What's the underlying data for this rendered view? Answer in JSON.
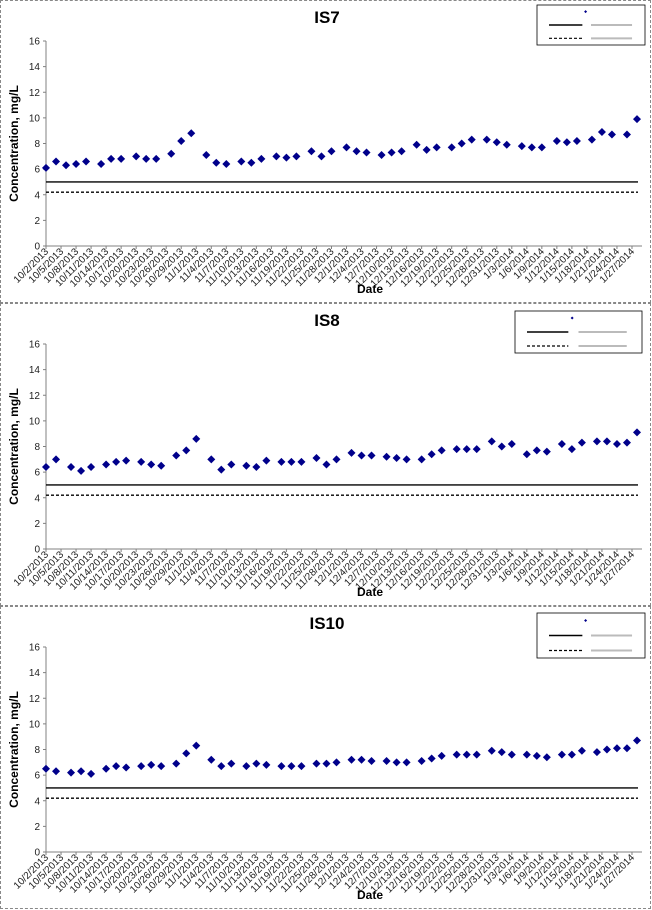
{
  "chart_data": [
    {
      "type": "scatter",
      "title": "IS7",
      "xlabel": "Date",
      "ylabel": "Concentration, mg/L",
      "ylim": [
        0,
        16
      ],
      "yticks": [
        0,
        2,
        4,
        6,
        8,
        10,
        12,
        14,
        16
      ],
      "xticks": [
        "10/2/2013",
        "10/5/2013",
        "10/8/2013",
        "10/11/2013",
        "10/14/2013",
        "10/17/2013",
        "10/20/2013",
        "10/23/2013",
        "10/26/2013",
        "10/29/2013",
        "11/1/2013",
        "11/4/2013",
        "11/7/2013",
        "11/10/2013",
        "11/13/2013",
        "11/16/2013",
        "11/19/2013",
        "11/22/2013",
        "11/25/2013",
        "11/28/2013",
        "12/1/2013",
        "12/4/2013",
        "12/7/2013",
        "12/10/2013",
        "12/13/2013",
        "12/16/2013",
        "12/19/2013",
        "12/22/2013",
        "12/25/2013",
        "12/28/2013",
        "12/31/2013",
        "1/3/2014",
        "1/6/2014",
        "1/9/2014",
        "1/12/2014",
        "1/15/2014",
        "1/18/2014",
        "1/21/2014",
        "1/24/2014",
        "1/27/2014"
      ],
      "xlim": [
        "10/2/2013",
        "1/29/2014"
      ],
      "lines": [
        {
          "name": "",
          "value": 5.0,
          "style": "solid"
        },
        {
          "name": "",
          "value": 4.2,
          "style": "dashed"
        }
      ],
      "legend": "top-right",
      "grid": false,
      "series": [
        {
          "name": "",
          "marker": "diamond",
          "color": "#00008B",
          "x": [
            "10/2/2013",
            "10/4/2013",
            "10/6/2013",
            "10/8/2013",
            "10/10/2013",
            "10/13/2013",
            "10/15/2013",
            "10/17/2013",
            "10/20/2013",
            "10/22/2013",
            "10/24/2013",
            "10/27/2013",
            "10/29/2013",
            "10/31/2013",
            "11/3/2013",
            "11/5/2013",
            "11/7/2013",
            "11/10/2013",
            "11/12/2013",
            "11/14/2013",
            "11/17/2013",
            "11/19/2013",
            "11/21/2013",
            "11/24/2013",
            "11/26/2013",
            "11/28/2013",
            "12/1/2013",
            "12/3/2013",
            "12/5/2013",
            "12/8/2013",
            "12/10/2013",
            "12/12/2013",
            "12/15/2013",
            "12/17/2013",
            "12/19/2013",
            "12/22/2013",
            "12/24/2013",
            "12/26/2013",
            "12/29/2013",
            "12/31/2013",
            "1/2/2014",
            "1/5/2014",
            "1/7/2014",
            "1/9/2014",
            "1/12/2014",
            "1/14/2014",
            "1/16/2014",
            "1/19/2014",
            "1/21/2014",
            "1/23/2014",
            "1/26/2014",
            "1/28/2014"
          ],
          "y": [
            6.1,
            6.6,
            6.3,
            6.4,
            6.6,
            6.4,
            6.8,
            6.8,
            7.0,
            6.8,
            6.8,
            7.2,
            8.2,
            8.8,
            7.1,
            6.5,
            6.4,
            6.6,
            6.5,
            6.8,
            7.0,
            6.9,
            7.0,
            7.4,
            7.0,
            7.4,
            7.7,
            7.4,
            7.3,
            7.1,
            7.3,
            7.4,
            7.9,
            7.5,
            7.7,
            7.7,
            8.0,
            8.3,
            8.3,
            8.1,
            7.9,
            7.8,
            7.7,
            7.7,
            8.2,
            8.1,
            8.2,
            8.3,
            8.9,
            8.7,
            8.7,
            9.9
          ]
        }
      ]
    },
    {
      "type": "scatter",
      "title": "IS8",
      "xlabel": "Date",
      "ylabel": "Concentration, mg/L",
      "ylim": [
        0,
        16
      ],
      "yticks": [
        0,
        2,
        4,
        6,
        8,
        10,
        12,
        14,
        16
      ],
      "xticks": [
        "10/2/2013",
        "10/5/2013",
        "10/8/2013",
        "10/11/2013",
        "10/14/2013",
        "10/17/2013",
        "10/20/2013",
        "10/23/2013",
        "10/26/2013",
        "10/29/2013",
        "11/1/2013",
        "11/4/2013",
        "11/7/2013",
        "11/10/2013",
        "11/13/2013",
        "11/16/2013",
        "11/19/2013",
        "11/22/2013",
        "11/25/2013",
        "11/28/2013",
        "12/1/2013",
        "12/4/2013",
        "12/7/2013",
        "12/10/2013",
        "12/13/2013",
        "12/16/2013",
        "12/19/2013",
        "12/22/2013",
        "12/25/2013",
        "12/28/2013",
        "12/31/2013",
        "1/3/2014",
        "1/6/2014",
        "1/9/2014",
        "1/12/2014",
        "1/15/2014",
        "1/18/2014",
        "1/21/2014",
        "1/24/2014",
        "1/27/2014"
      ],
      "xlim": [
        "10/2/2013",
        "1/29/2014"
      ],
      "lines": [
        {
          "name": "",
          "value": 5.0,
          "style": "solid"
        },
        {
          "name": "",
          "value": 4.2,
          "style": "dashed"
        }
      ],
      "legend": "top-right",
      "grid": false,
      "series": [
        {
          "name": "",
          "marker": "diamond",
          "color": "#00008B",
          "x": [
            "10/2/2013",
            "10/4/2013",
            "10/7/2013",
            "10/9/2013",
            "10/11/2013",
            "10/14/2013",
            "10/16/2013",
            "10/18/2013",
            "10/21/2013",
            "10/23/2013",
            "10/25/2013",
            "10/28/2013",
            "10/30/2013",
            "11/1/2013",
            "11/4/2013",
            "11/6/2013",
            "11/8/2013",
            "11/11/2013",
            "11/13/2013",
            "11/15/2013",
            "11/18/2013",
            "11/20/2013",
            "11/22/2013",
            "11/25/2013",
            "11/27/2013",
            "11/29/2013",
            "12/2/2013",
            "12/4/2013",
            "12/6/2013",
            "12/9/2013",
            "12/11/2013",
            "12/13/2013",
            "12/16/2013",
            "12/18/2013",
            "12/20/2013",
            "12/23/2013",
            "12/25/2013",
            "12/27/2013",
            "12/30/2013",
            "1/1/2014",
            "1/3/2014",
            "1/6/2014",
            "1/8/2014",
            "1/10/2014",
            "1/13/2014",
            "1/15/2014",
            "1/17/2014",
            "1/20/2014",
            "1/22/2014",
            "1/24/2014",
            "1/26/2014",
            "1/28/2014"
          ],
          "y": [
            6.4,
            7.0,
            6.4,
            6.1,
            6.4,
            6.6,
            6.8,
            6.9,
            6.8,
            6.6,
            6.5,
            7.3,
            7.7,
            8.6,
            7.0,
            6.2,
            6.6,
            6.5,
            6.4,
            6.9,
            6.8,
            6.8,
            6.8,
            7.1,
            6.6,
            7.0,
            7.5,
            7.3,
            7.3,
            7.2,
            7.1,
            7.0,
            7.0,
            7.4,
            7.7,
            7.8,
            7.8,
            7.8,
            8.4,
            8.0,
            8.2,
            7.4,
            7.7,
            7.6,
            8.2,
            7.8,
            8.3,
            8.4,
            8.4,
            8.2,
            8.3,
            9.1
          ]
        }
      ]
    },
    {
      "type": "scatter",
      "title": "IS10",
      "xlabel": "Date",
      "ylabel": "Concentration, mg/L",
      "ylim": [
        0,
        16
      ],
      "yticks": [
        0,
        2,
        4,
        6,
        8,
        10,
        12,
        14,
        16
      ],
      "xticks": [
        "10/2/2013",
        "10/5/2013",
        "10/8/2013",
        "10/11/2013",
        "10/14/2013",
        "10/17/2013",
        "10/20/2013",
        "10/23/2013",
        "10/26/2013",
        "10/29/2013",
        "11/1/2013",
        "11/4/2013",
        "11/7/2013",
        "11/10/2013",
        "11/13/2013",
        "11/16/2013",
        "11/19/2013",
        "11/22/2013",
        "11/25/2013",
        "11/28/2013",
        "12/1/2013",
        "12/4/2013",
        "12/7/2013",
        "12/10/2013",
        "12/13/2013",
        "12/16/2013",
        "12/19/2013",
        "12/22/2013",
        "12/25/2013",
        "12/28/2013",
        "12/31/2013",
        "1/3/2014",
        "1/6/2014",
        "1/9/2014",
        "1/12/2014",
        "1/15/2014",
        "1/18/2014",
        "1/21/2014",
        "1/24/2014",
        "1/27/2014"
      ],
      "xlim": [
        "10/2/2013",
        "1/29/2014"
      ],
      "lines": [
        {
          "name": "",
          "value": 5.0,
          "style": "solid"
        },
        {
          "name": "",
          "value": 4.2,
          "style": "dashed"
        }
      ],
      "legend": "top-right",
      "grid": false,
      "series": [
        {
          "name": "",
          "marker": "diamond",
          "color": "#00008B",
          "x": [
            "10/2/2013",
            "10/4/2013",
            "10/7/2013",
            "10/9/2013",
            "10/11/2013",
            "10/14/2013",
            "10/16/2013",
            "10/18/2013",
            "10/21/2013",
            "10/23/2013",
            "10/25/2013",
            "10/28/2013",
            "10/30/2013",
            "11/1/2013",
            "11/4/2013",
            "11/6/2013",
            "11/8/2013",
            "11/11/2013",
            "11/13/2013",
            "11/15/2013",
            "11/18/2013",
            "11/20/2013",
            "11/22/2013",
            "11/25/2013",
            "11/27/2013",
            "11/29/2013",
            "12/2/2013",
            "12/4/2013",
            "12/6/2013",
            "12/9/2013",
            "12/11/2013",
            "12/13/2013",
            "12/16/2013",
            "12/18/2013",
            "12/20/2013",
            "12/23/2013",
            "12/25/2013",
            "12/27/2013",
            "12/30/2013",
            "1/1/2014",
            "1/3/2014",
            "1/6/2014",
            "1/8/2014",
            "1/10/2014",
            "1/13/2014",
            "1/15/2014",
            "1/17/2014",
            "1/20/2014",
            "1/22/2014",
            "1/24/2014",
            "1/26/2014",
            "1/28/2014"
          ],
          "y": [
            6.5,
            6.3,
            6.2,
            6.3,
            6.1,
            6.5,
            6.7,
            6.6,
            6.7,
            6.8,
            6.7,
            6.9,
            7.7,
            8.3,
            7.2,
            6.7,
            6.9,
            6.7,
            6.9,
            6.8,
            6.7,
            6.7,
            6.7,
            6.9,
            6.9,
            7.0,
            7.2,
            7.2,
            7.1,
            7.1,
            7.0,
            7.0,
            7.1,
            7.3,
            7.5,
            7.6,
            7.6,
            7.6,
            7.9,
            7.8,
            7.6,
            7.6,
            7.5,
            7.4,
            7.6,
            7.6,
            7.9,
            7.8,
            8.0,
            8.1,
            8.1,
            8.7
          ]
        }
      ]
    }
  ]
}
